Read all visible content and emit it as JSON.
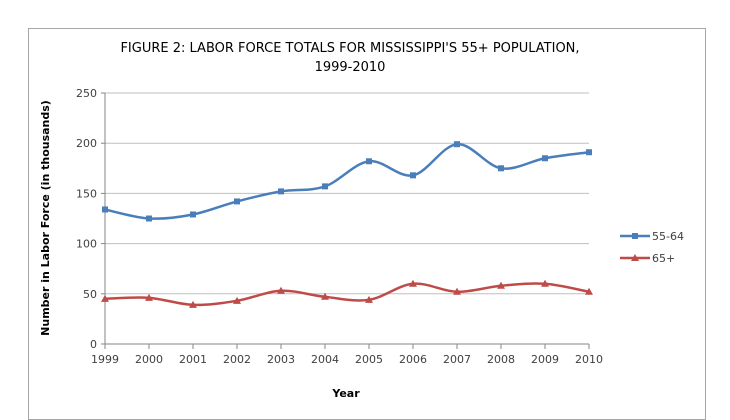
{
  "chart_data": {
    "type": "line",
    "title": [
      "FIGURE 2: LABOR FORCE TOTALS FOR MISSISSIPPI'S 55+ POPULATION,",
      "1999-2010"
    ],
    "xlabel": "Year",
    "ylabel": "Number in Labor Force (in thousands)",
    "ylim": [
      0,
      250
    ],
    "yticks": [
      "0",
      "50",
      "100",
      "150",
      "200",
      "250"
    ],
    "categories": [
      "1999",
      "2000",
      "2001",
      "2002",
      "2003",
      "2004",
      "2005",
      "2006",
      "2007",
      "2008",
      "2009",
      "2010"
    ],
    "grid": true,
    "legend_position": "right",
    "series": [
      {
        "name": "55-64",
        "color": "#4a7ebb",
        "marker": "square",
        "values": [
          134,
          125,
          129,
          142,
          152,
          157,
          182,
          168,
          199,
          175,
          185,
          191
        ]
      },
      {
        "name": "65+",
        "color": "#be4b48",
        "marker": "triangle",
        "values": [
          45,
          46,
          39,
          43,
          53,
          47,
          44,
          60,
          52,
          58,
          60,
          52
        ]
      }
    ]
  }
}
